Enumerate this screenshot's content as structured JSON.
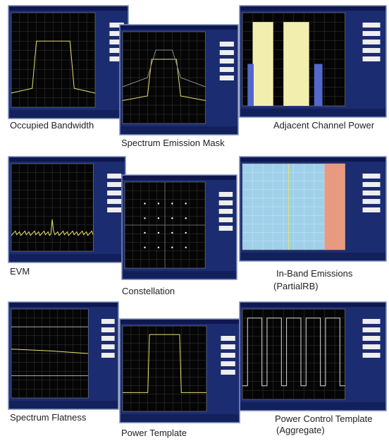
{
  "panels": [
    {
      "caption": "Occupied Bandwidth"
    },
    {
      "caption": "Spectrum Emission Mask"
    },
    {
      "caption": "Adjacent Channel Power"
    },
    {
      "caption": "EVM"
    },
    {
      "caption": "Constellation"
    },
    {
      "caption": "In-Band Emissions",
      "subcaption": "(PartialRB)"
    },
    {
      "caption": "Spectrum Flatness"
    },
    {
      "caption": "Power Template"
    },
    {
      "caption": "Power Control Template",
      "subcaption": "(Aggregate)"
    }
  ]
}
